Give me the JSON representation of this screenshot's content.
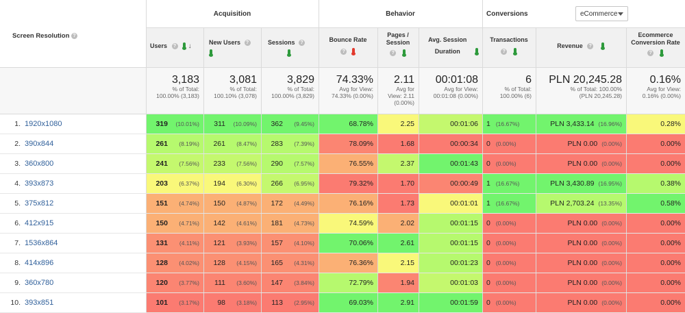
{
  "dimension": {
    "label": "Screen Resolution"
  },
  "groups": {
    "acquisition": "Acquisition",
    "behavior": "Behavior",
    "conversions": "Conversions"
  },
  "conversion_selector": {
    "value": "eCommerce"
  },
  "columns": {
    "users": "Users",
    "new_users": "New Users",
    "sessions": "Sessions",
    "bounce_rate": "Bounce Rate",
    "pages_session": "Pages / Session",
    "avg_duration": "Avg. Session Duration",
    "transactions": "Transactions",
    "revenue": "Revenue",
    "conversion_rate": "Ecommerce Conversion Rate"
  },
  "totals": {
    "users": {
      "value": "3,183",
      "sub1": "% of Total:",
      "sub2": "100.00% (3,183)"
    },
    "new_users": {
      "value": "3,081",
      "sub1": "% of Total:",
      "sub2": "100.10% (3,078)"
    },
    "sessions": {
      "value": "3,829",
      "sub1": "% of Total:",
      "sub2": "100.00% (3,829)"
    },
    "bounce_rate": {
      "value": "74.33%",
      "sub1": "Avg for View:",
      "sub2": "74.33% (0.00%)"
    },
    "pages_session": {
      "value": "2.11",
      "sub1": "Avg for",
      "sub2": "View: 2.11",
      "sub3": "(0.00%)"
    },
    "avg_duration": {
      "value": "00:01:08",
      "sub1": "Avg for View:",
      "sub2": "00:01:08 (0.00%)"
    },
    "transactions": {
      "value": "6",
      "sub1": "% of Total:",
      "sub2": "100.00% (6)"
    },
    "revenue": {
      "value": "PLN 20,245.28",
      "sub1": "% of Total: 100.00%",
      "sub2": "(PLN 20,245.28)"
    },
    "conversion_rate": {
      "value": "0.16%",
      "sub1": "Avg for View:",
      "sub2": "0.16% (0.00%)"
    }
  },
  "rows": [
    {
      "idx": "1.",
      "res": "1920x1080",
      "users": "319",
      "users_pct": "(10.01%)",
      "new_users": "311",
      "new_pct": "(10.09%)",
      "sessions": "362",
      "sess_pct": "(9.45%)",
      "bounce": "68.78%",
      "pages": "2.25",
      "dur": "00:01:06",
      "trans": "1",
      "trans_pct": "(16.67%)",
      "revenue": "PLN 3,433.14",
      "rev_pct": "(16.96%)",
      "conv": "0.28%"
    },
    {
      "idx": "2.",
      "res": "390x844",
      "users": "261",
      "users_pct": "(8.19%)",
      "new_users": "261",
      "new_pct": "(8.47%)",
      "sessions": "283",
      "sess_pct": "(7.39%)",
      "bounce": "78.09%",
      "pages": "1.68",
      "dur": "00:00:34",
      "trans": "0",
      "trans_pct": "(0.00%)",
      "revenue": "PLN 0.00",
      "rev_pct": "(0.00%)",
      "conv": "0.00%"
    },
    {
      "idx": "3.",
      "res": "360x800",
      "users": "241",
      "users_pct": "(7.56%)",
      "new_users": "233",
      "new_pct": "(7.56%)",
      "sessions": "290",
      "sess_pct": "(7.57%)",
      "bounce": "76.55%",
      "pages": "2.37",
      "dur": "00:01:43",
      "trans": "0",
      "trans_pct": "(0.00%)",
      "revenue": "PLN 0.00",
      "rev_pct": "(0.00%)",
      "conv": "0.00%"
    },
    {
      "idx": "4.",
      "res": "393x873",
      "users": "203",
      "users_pct": "(6.37%)",
      "new_users": "194",
      "new_pct": "(6.30%)",
      "sessions": "266",
      "sess_pct": "(6.95%)",
      "bounce": "79.32%",
      "pages": "1.70",
      "dur": "00:00:49",
      "trans": "1",
      "trans_pct": "(16.67%)",
      "revenue": "PLN 3,430.89",
      "rev_pct": "(16.95%)",
      "conv": "0.38%"
    },
    {
      "idx": "5.",
      "res": "375x812",
      "users": "151",
      "users_pct": "(4.74%)",
      "new_users": "150",
      "new_pct": "(4.87%)",
      "sessions": "172",
      "sess_pct": "(4.49%)",
      "bounce": "76.16%",
      "pages": "1.73",
      "dur": "00:01:01",
      "trans": "1",
      "trans_pct": "(16.67%)",
      "revenue": "PLN 2,703.24",
      "rev_pct": "(13.35%)",
      "conv": "0.58%"
    },
    {
      "idx": "6.",
      "res": "412x915",
      "users": "150",
      "users_pct": "(4.71%)",
      "new_users": "142",
      "new_pct": "(4.61%)",
      "sessions": "181",
      "sess_pct": "(4.73%)",
      "bounce": "74.59%",
      "pages": "2.02",
      "dur": "00:01:15",
      "trans": "0",
      "trans_pct": "(0.00%)",
      "revenue": "PLN 0.00",
      "rev_pct": "(0.00%)",
      "conv": "0.00%"
    },
    {
      "idx": "7.",
      "res": "1536x864",
      "users": "131",
      "users_pct": "(4.11%)",
      "new_users": "121",
      "new_pct": "(3.93%)",
      "sessions": "157",
      "sess_pct": "(4.10%)",
      "bounce": "70.06%",
      "pages": "2.61",
      "dur": "00:01:15",
      "trans": "0",
      "trans_pct": "(0.00%)",
      "revenue": "PLN 0.00",
      "rev_pct": "(0.00%)",
      "conv": "0.00%"
    },
    {
      "idx": "8.",
      "res": "414x896",
      "users": "128",
      "users_pct": "(4.02%)",
      "new_users": "128",
      "new_pct": "(4.15%)",
      "sessions": "165",
      "sess_pct": "(4.31%)",
      "bounce": "76.36%",
      "pages": "2.15",
      "dur": "00:01:23",
      "trans": "0",
      "trans_pct": "(0.00%)",
      "revenue": "PLN 0.00",
      "rev_pct": "(0.00%)",
      "conv": "0.00%"
    },
    {
      "idx": "9.",
      "res": "360x780",
      "users": "120",
      "users_pct": "(3.77%)",
      "new_users": "111",
      "new_pct": "(3.60%)",
      "sessions": "147",
      "sess_pct": "(3.84%)",
      "bounce": "72.79%",
      "pages": "1.94",
      "dur": "00:01:03",
      "trans": "0",
      "trans_pct": "(0.00%)",
      "revenue": "PLN 0.00",
      "rev_pct": "(0.00%)",
      "conv": "0.00%"
    },
    {
      "idx": "10.",
      "res": "393x851",
      "users": "101",
      "users_pct": "(3.17%)",
      "new_users": "98",
      "new_pct": "(3.18%)",
      "sessions": "113",
      "sess_pct": "(2.95%)",
      "bounce": "69.03%",
      "pages": "2.91",
      "dur": "00:01:59",
      "trans": "0",
      "trans_pct": "(0.00%)",
      "revenue": "PLN 0.00",
      "rev_pct": "(0.00%)",
      "conv": "0.00%"
    }
  ],
  "heatmap_colors": {
    "users": [
      "#72f46d",
      "#b6f96e",
      "#c4f86e",
      "#f9f87a",
      "#fbb075",
      "#fbb075",
      "#fb9073",
      "#fb9073",
      "#fb8572",
      "#fb7b71"
    ],
    "new_users": [
      "#72f46d",
      "#b6f96e",
      "#c4f86e",
      "#f9f87a",
      "#fbb075",
      "#fbb075",
      "#fb9073",
      "#fb9073",
      "#fb8572",
      "#fb7b71"
    ],
    "sessions": [
      "#72f46d",
      "#b6f96e",
      "#b6f96e",
      "#c4f86e",
      "#fbb075",
      "#fbb075",
      "#fb9073",
      "#fb9073",
      "#fb8572",
      "#fb7b71"
    ],
    "bounce": [
      "#72f46d",
      "#fb8572",
      "#fbb075",
      "#fb7b71",
      "#fbb075",
      "#f9f87a",
      "#72f46d",
      "#fbb075",
      "#b6f96e",
      "#72f46d"
    ],
    "pages": [
      "#f9f87a",
      "#fb7b71",
      "#c4f86e",
      "#fb7b71",
      "#fb7b71",
      "#fbb075",
      "#72f46d",
      "#f9f87a",
      "#fb8572",
      "#72f46d"
    ],
    "dur": [
      "#c4f86e",
      "#fb7b71",
      "#72f46d",
      "#fb8572",
      "#f9f87a",
      "#b6f96e",
      "#b6f96e",
      "#b6f96e",
      "#c4f86e",
      "#72f46d"
    ],
    "trans": [
      "#72f46d",
      "#fb7b71",
      "#fb7b71",
      "#72f46d",
      "#72f46d",
      "#fb7b71",
      "#fb7b71",
      "#fb7b71",
      "#fb7b71",
      "#fb7b71"
    ],
    "revenue": [
      "#72f46d",
      "#fb7b71",
      "#fb7b71",
      "#72f46d",
      "#b6f96e",
      "#fb7b71",
      "#fb7b71",
      "#fb7b71",
      "#fb7b71",
      "#fb7b71"
    ],
    "conv": [
      "#f9f87a",
      "#fb7b71",
      "#fb7b71",
      "#b6f96e",
      "#72f46d",
      "#fb7b71",
      "#fb7b71",
      "#fb7b71",
      "#fb7b71",
      "#fb7b71"
    ]
  }
}
